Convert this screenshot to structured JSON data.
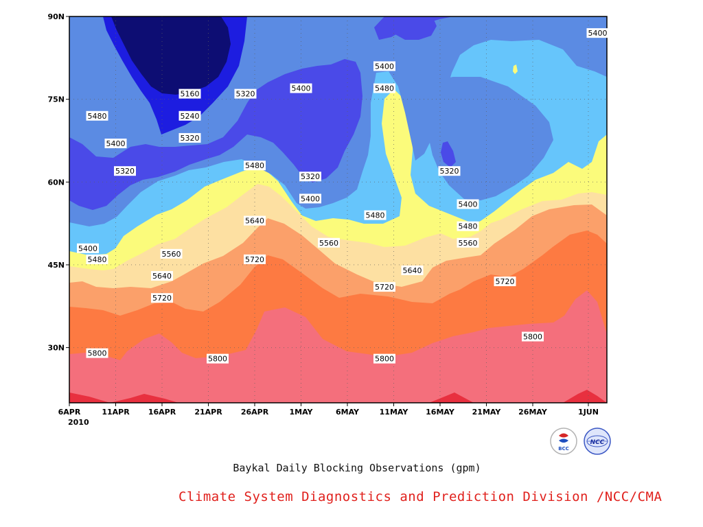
{
  "chart_data": {
    "type": "contour",
    "title": "Baykal Daily Blocking Observations (gpm)",
    "credit": "Climate System Diagnostics and Prediction Division /NCC/CMA",
    "x_ticks": [
      "6APR",
      "11APR",
      "16APR",
      "21APR",
      "26APR",
      "1MAY",
      "6MAY",
      "11MAY",
      "16MAY",
      "21MAY",
      "26MAY",
      "1JUN"
    ],
    "x_year_label": "2010",
    "x_range": [
      "2010-04-06",
      "2010-06-03"
    ],
    "y_ticks": [
      "90N",
      "75N",
      "60N",
      "45N",
      "30N"
    ],
    "y_range": [
      20,
      90
    ],
    "grid": true,
    "levels": [
      5160,
      5240,
      5320,
      5400,
      5480,
      5560,
      5640,
      5720,
      5800,
      5880
    ],
    "fill_colors": [
      "#0d0d73",
      "#1d1de0",
      "#4a4ae8",
      "#5b8be3",
      "#66c5fb",
      "#fbfb7b",
      "#fde0a2",
      "#fba06a",
      "#fd7a42",
      "#f46f7c",
      "#e8303f"
    ],
    "contour_labels": [
      {
        "text": "5160",
        "date": "2010-04-19",
        "lat": 76
      },
      {
        "text": "5240",
        "date": "2010-04-19",
        "lat": 72
      },
      {
        "text": "5320",
        "date": "2010-04-19",
        "lat": 68
      },
      {
        "text": "5320",
        "date": "2010-04-25",
        "lat": 76
      },
      {
        "text": "5400",
        "date": "2010-05-01",
        "lat": 77
      },
      {
        "text": "5400",
        "date": "2010-05-10",
        "lat": 81
      },
      {
        "text": "5480",
        "date": "2010-05-10",
        "lat": 77
      },
      {
        "text": "5480",
        "date": "2010-04-09",
        "lat": 72
      },
      {
        "text": "5400",
        "date": "2010-04-11",
        "lat": 67
      },
      {
        "text": "5320",
        "date": "2010-04-12",
        "lat": 62
      },
      {
        "text": "5480",
        "date": "2010-04-26",
        "lat": 63
      },
      {
        "text": "5320",
        "date": "2010-05-02",
        "lat": 61
      },
      {
        "text": "5400",
        "date": "2010-05-02",
        "lat": 57
      },
      {
        "text": "5320",
        "date": "2010-05-17",
        "lat": 62
      },
      {
        "text": "5400",
        "date": "2010-05-19",
        "lat": 56
      },
      {
        "text": "5480",
        "date": "2010-05-19",
        "lat": 52
      },
      {
        "text": "5560",
        "date": "2010-05-19",
        "lat": 49
      },
      {
        "text": "5480",
        "date": "2010-05-09",
        "lat": 54
      },
      {
        "text": "5640",
        "date": "2010-04-26",
        "lat": 53
      },
      {
        "text": "5560",
        "date": "2010-05-04",
        "lat": 49
      },
      {
        "text": "5400",
        "date": "2010-04-08",
        "lat": 48
      },
      {
        "text": "5480",
        "date": "2010-04-09",
        "lat": 46
      },
      {
        "text": "5560",
        "date": "2010-04-17",
        "lat": 47
      },
      {
        "text": "5640",
        "date": "2010-04-16",
        "lat": 43
      },
      {
        "text": "5720",
        "date": "2010-04-16",
        "lat": 39
      },
      {
        "text": "5720",
        "date": "2010-04-26",
        "lat": 46
      },
      {
        "text": "5640",
        "date": "2010-05-13",
        "lat": 44
      },
      {
        "text": "5720",
        "date": "2010-05-10",
        "lat": 41
      },
      {
        "text": "5720",
        "date": "2010-05-23",
        "lat": 42
      },
      {
        "text": "5800",
        "date": "2010-04-09",
        "lat": 29
      },
      {
        "text": "5800",
        "date": "2010-04-22",
        "lat": 28
      },
      {
        "text": "5800",
        "date": "2010-05-10",
        "lat": 28
      },
      {
        "text": "5800",
        "date": "2010-05-26",
        "lat": 32
      },
      {
        "text": "5400",
        "date": "2010-06-02",
        "lat": 87
      }
    ]
  },
  "logos": {
    "left_text": "BCC",
    "right_text": "NCC"
  }
}
